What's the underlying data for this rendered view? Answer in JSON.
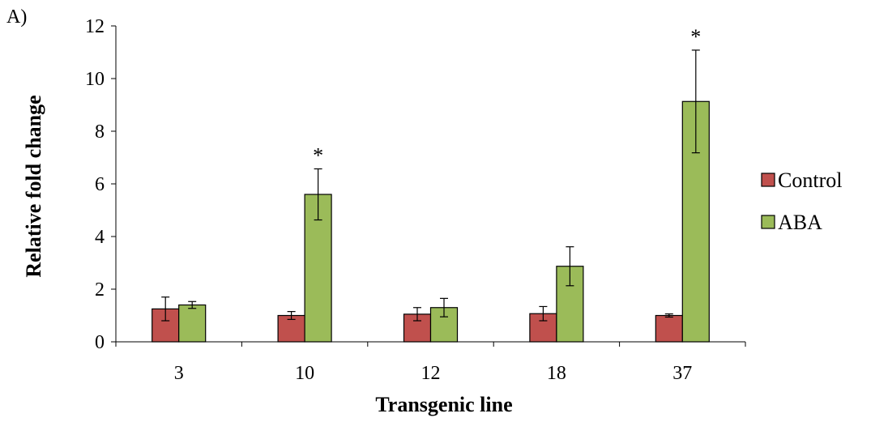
{
  "panel_label": "A)",
  "colors": {
    "control": "#c0504d",
    "aba": "#9bbb59",
    "stroke": "#000000"
  },
  "chart_data": {
    "type": "bar",
    "xlabel": "Transgenic line",
    "ylabel": "Relative fold change",
    "categories": [
      "3",
      "10",
      "12",
      "18",
      "37"
    ],
    "ylim": [
      0,
      12
    ],
    "yticks": [
      0,
      2,
      4,
      6,
      8,
      10,
      12
    ],
    "yticks_labels": [
      "0",
      "2",
      "4",
      "6",
      "8",
      "10",
      "12"
    ],
    "grid": false,
    "legend_position": "right",
    "series": [
      {
        "name": "Control",
        "values": [
          1.25,
          1.0,
          1.05,
          1.07,
          1.0
        ],
        "errors": [
          0.45,
          0.15,
          0.25,
          0.27,
          0.06
        ]
      },
      {
        "name": "ABA",
        "values": [
          1.4,
          5.6,
          1.3,
          2.87,
          9.13
        ],
        "errors": [
          0.13,
          0.97,
          0.35,
          0.74,
          1.95
        ]
      }
    ],
    "annotations": [
      {
        "category": "10",
        "series": "ABA",
        "text": "*"
      },
      {
        "category": "37",
        "series": "ABA",
        "text": "*"
      }
    ]
  }
}
